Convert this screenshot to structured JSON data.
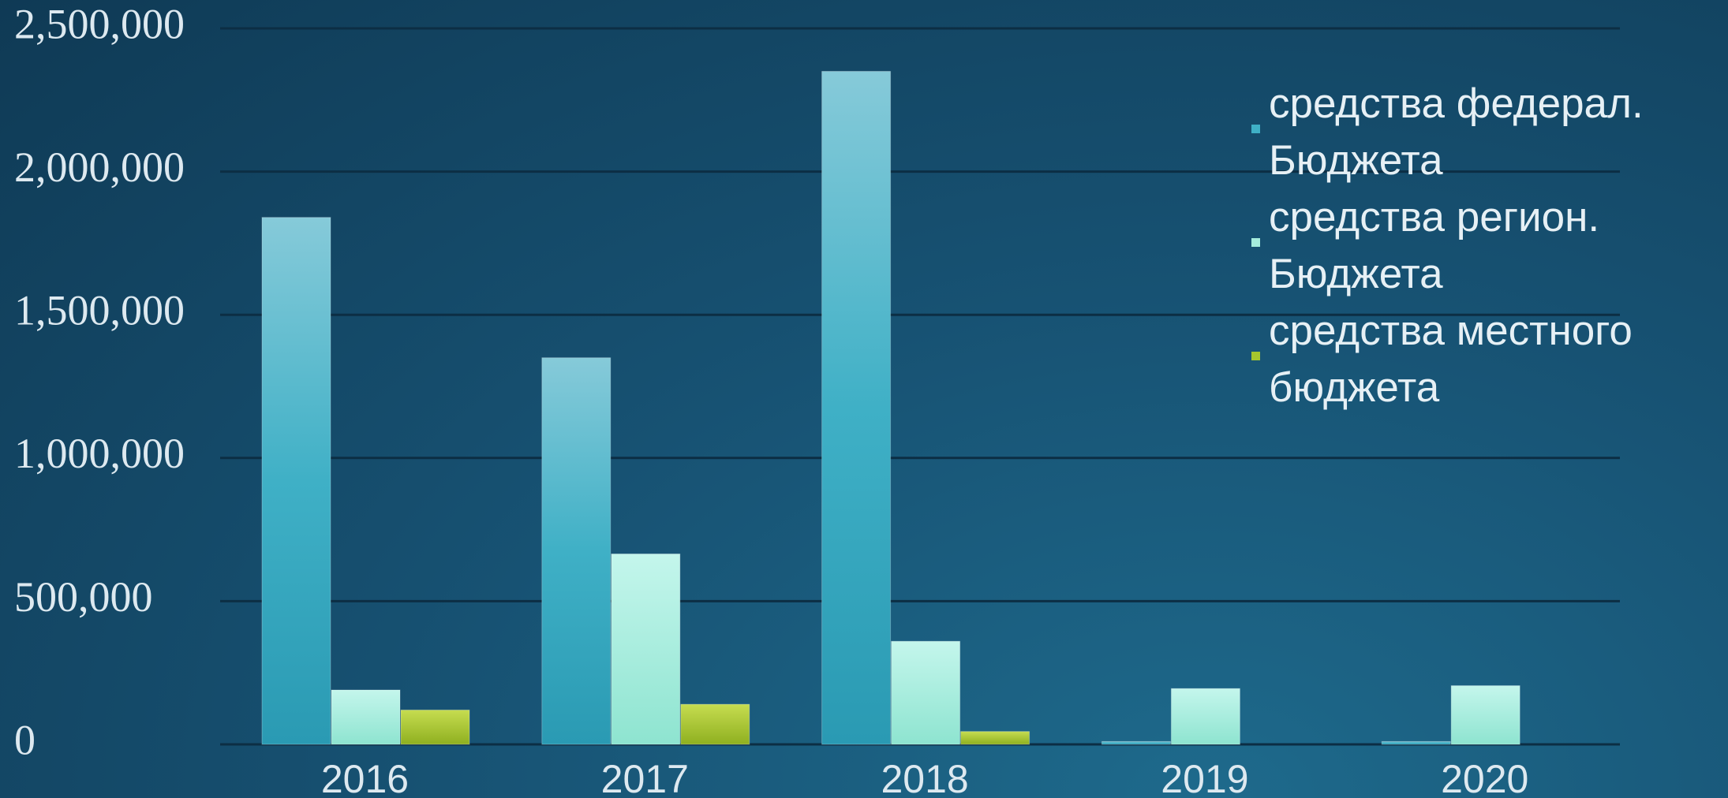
{
  "chart_data": {
    "type": "bar",
    "categories": [
      "2016",
      "2017",
      "2018",
      "2019",
      "2020"
    ],
    "series": [
      {
        "name": "средства федерал. Бюджета",
        "color": "#3fb0c6",
        "values": [
          1840000,
          1350000,
          2350000,
          10000,
          10000
        ]
      },
      {
        "name": "средства регион. Бюджета",
        "color": "#a4ecdc",
        "values": [
          190000,
          665000,
          360000,
          195000,
          205000
        ]
      },
      {
        "name": "средства местного бюджета",
        "color": "#a6c62e",
        "values": [
          120000,
          140000,
          45000,
          0,
          0
        ]
      }
    ],
    "ylim": [
      0,
      2500000
    ],
    "yticks": [
      0,
      {
        "value": 500000,
        "label": "500,000"
      },
      {
        "value": 1000000,
        "label": "1,000,000"
      },
      {
        "value": 1500000,
        "label": "1,500,000"
      },
      {
        "value": 2000000,
        "label": "2,000,000"
      },
      {
        "value": 2500000,
        "label": "2,500,000"
      }
    ],
    "grid": true,
    "legend": "right"
  }
}
